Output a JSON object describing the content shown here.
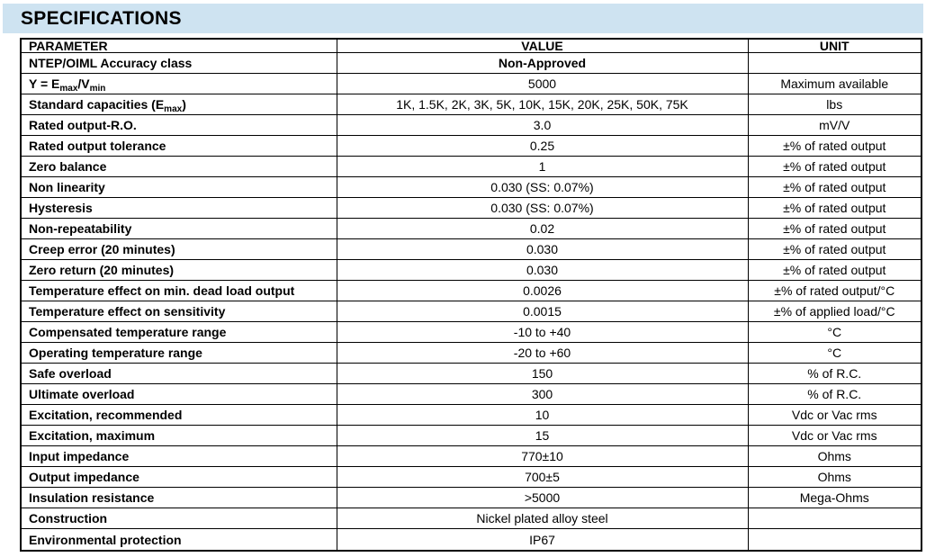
{
  "header": {
    "title": "SPECIFICATIONS",
    "background_color": "#cee3f1",
    "text_color": "#000000"
  },
  "table": {
    "border_color": "#000000",
    "subscript_marker": "~",
    "columns": [
      "PARAMETER",
      "VALUE",
      "UNIT"
    ],
    "rows": [
      {
        "parameter": "NTEP/OIML Accuracy class",
        "value": "Non-Approved",
        "unit": "",
        "value_bold": true
      },
      {
        "parameter": "Y = E~max~/V~min~",
        "value": "5000",
        "unit": "Maximum available",
        "value_bold": false
      },
      {
        "parameter": "Standard capacities (E~max~)",
        "value": "1K, 1.5K, 2K, 3K, 5K, 10K, 15K, 20K, 25K, 50K, 75K",
        "unit": "lbs",
        "value_bold": false
      },
      {
        "parameter": "Rated output-R.O.",
        "value": "3.0",
        "unit": "mV/V",
        "value_bold": false
      },
      {
        "parameter": "Rated output tolerance",
        "value": "0.25",
        "unit": "±% of rated output",
        "value_bold": false
      },
      {
        "parameter": "Zero balance",
        "value": "1",
        "unit": "±% of rated output",
        "value_bold": false
      },
      {
        "parameter": "Non linearity",
        "value": "0.030 (SS: 0.07%)",
        "unit": "±% of rated output",
        "value_bold": false
      },
      {
        "parameter": "Hysteresis",
        "value": "0.030 (SS: 0.07%)",
        "unit": "±% of rated output",
        "value_bold": false
      },
      {
        "parameter": "Non-repeatability",
        "value": "0.02",
        "unit": "±% of rated output",
        "value_bold": false
      },
      {
        "parameter": "Creep error (20 minutes)",
        "value": "0.030",
        "unit": "±% of rated output",
        "value_bold": false
      },
      {
        "parameter": "Zero return (20 minutes)",
        "value": "0.030",
        "unit": "±% of rated output",
        "value_bold": false
      },
      {
        "parameter": "Temperature effect on min. dead load output",
        "value": "0.0026",
        "unit": "±% of rated output/°C",
        "value_bold": false
      },
      {
        "parameter": "Temperature effect on sensitivity",
        "value": "0.0015",
        "unit": "±% of applied load/°C",
        "value_bold": false
      },
      {
        "parameter": "Compensated temperature range",
        "value": "-10 to +40",
        "unit": "°C",
        "value_bold": false
      },
      {
        "parameter": "Operating temperature range",
        "value": "-20 to +60",
        "unit": "°C",
        "value_bold": false
      },
      {
        "parameter": "Safe overload",
        "value": "150",
        "unit": "% of R.C.",
        "value_bold": false
      },
      {
        "parameter": "Ultimate overload",
        "value": "300",
        "unit": "% of R.C.",
        "value_bold": false
      },
      {
        "parameter": "Excitation, recommended",
        "value": "10",
        "unit": "Vdc or Vac rms",
        "value_bold": false
      },
      {
        "parameter": "Excitation, maximum",
        "value": "15",
        "unit": "Vdc or Vac rms",
        "value_bold": false
      },
      {
        "parameter": "Input impedance",
        "value": "770±10",
        "unit": "Ohms",
        "value_bold": false
      },
      {
        "parameter": "Output impedance",
        "value": "700±5",
        "unit": "Ohms",
        "value_bold": false
      },
      {
        "parameter": "Insulation resistance",
        "value": ">5000",
        "unit": "Mega-Ohms",
        "value_bold": false
      },
      {
        "parameter": "Construction",
        "value": "Nickel plated alloy steel",
        "unit": "",
        "value_bold": false
      },
      {
        "parameter": "Environmental protection",
        "value": "IP67",
        "unit": "",
        "value_bold": false
      }
    ]
  }
}
